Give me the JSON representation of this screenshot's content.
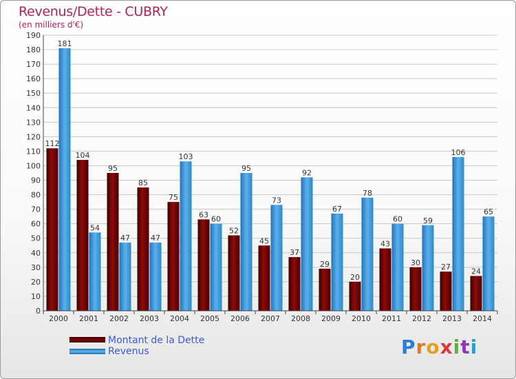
{
  "title": "Revenus/Dette - CUBRY",
  "subtitle": "(en milliers d'€)",
  "legend": {
    "dette": "Montant de la Dette",
    "revenus": "Revenus"
  },
  "brand": {
    "letters": [
      "P",
      "r",
      "o",
      "x",
      "i",
      "t",
      "i"
    ],
    "colors": [
      "#2a7fd0",
      "#e07b1a",
      "#e0a020",
      "#d83a3a",
      "#52b63a",
      "#8a3bb0",
      "#2a9fd0"
    ]
  },
  "colors": {
    "dette": "#7a0000",
    "revenus": "#49a6e6",
    "value_label": "#333333",
    "grid": "#c8c8c8"
  },
  "chart_data": {
    "type": "bar",
    "title": "Revenus/Dette - CUBRY",
    "ylabel": "(en milliers d'€)",
    "xlabel": "",
    "ylim": [
      0,
      190
    ],
    "ytick_step": 10,
    "grid": true,
    "legend_position": "bottom-left",
    "categories": [
      "2000",
      "2001",
      "2002",
      "2003",
      "2004",
      "2005",
      "2006",
      "2007",
      "2008",
      "2009",
      "2010",
      "2011",
      "2012",
      "2013",
      "2014"
    ],
    "series": [
      {
        "name": "Montant de la Dette",
        "values": [
          112,
          104,
          95,
          85,
          75,
          63,
          52,
          45,
          37,
          29,
          20,
          43,
          30,
          27,
          24
        ]
      },
      {
        "name": "Revenus",
        "values": [
          181,
          54,
          47,
          47,
          103,
          60,
          95,
          73,
          92,
          67,
          78,
          60,
          59,
          106,
          65
        ]
      }
    ]
  }
}
